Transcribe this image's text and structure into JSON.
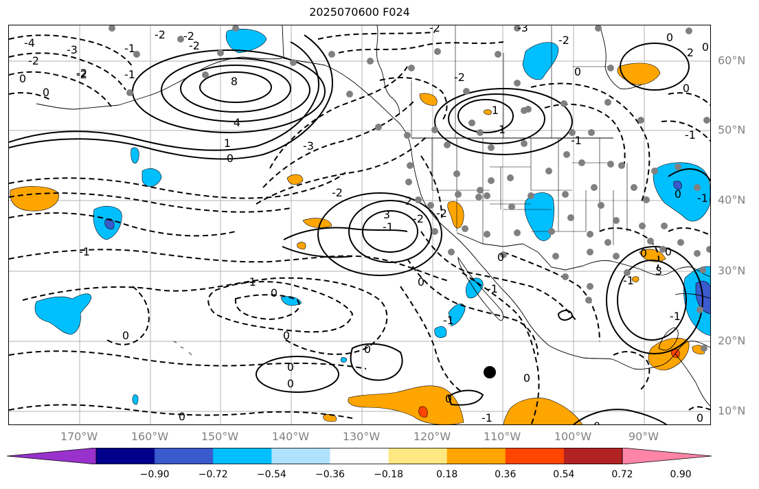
{
  "title": "2025070600 F024",
  "longitude_labels": [
    "170°W",
    "160°W",
    "150°W",
    "140°W",
    "130°W",
    "120°W",
    "110°W",
    "100°W",
    "90°W"
  ],
  "latitude_labels": [
    "60°N",
    "50°N",
    "40°N",
    "30°N",
    "20°N",
    "10°N"
  ],
  "contour_labels": [
    "-4",
    "-3",
    "-2",
    "-2",
    "0",
    "0",
    "-2",
    "-1",
    "-1",
    "-2",
    "-2",
    "-2",
    "8",
    "4",
    "1",
    "0",
    "-3",
    "-2",
    "3",
    "-1",
    "2",
    "-2",
    "-2",
    "-1",
    "0",
    "-1",
    "0",
    "0",
    "0",
    "0",
    "-2",
    "-2",
    "0",
    "-1",
    "-1",
    "0",
    "-1",
    "0",
    "-3",
    "-2",
    "0",
    "1",
    "-1",
    "0",
    "2",
    "0",
    "-1",
    "0",
    "-1",
    "0",
    "0",
    "-1",
    "0",
    "0",
    "0",
    "3",
    "-1",
    "0",
    "1",
    "0",
    "0"
  ],
  "colorbar": {
    "ticks": [
      "−0.90",
      "−0.72",
      "−0.54",
      "−0.36",
      "−0.18",
      "0.18",
      "0.36",
      "0.54",
      "0.72",
      "0.90"
    ],
    "colors": [
      "#9932cc",
      "#00008b",
      "#3a5bcd",
      "#00bfff",
      "#b0e2ff",
      "#ffffff",
      "#ffe882",
      "#ffa500",
      "#ff4500",
      "#b22222",
      "#ff85a8"
    ],
    "extend": "both"
  },
  "legend": {
    "colors": {
      "positive_fill": "#ffa500",
      "strong_positive": "#ff4500",
      "negative_fill": "#00bfff",
      "strong_negative": "#3a5bcd",
      "stations": "#808080",
      "marker": "#000000"
    }
  }
}
